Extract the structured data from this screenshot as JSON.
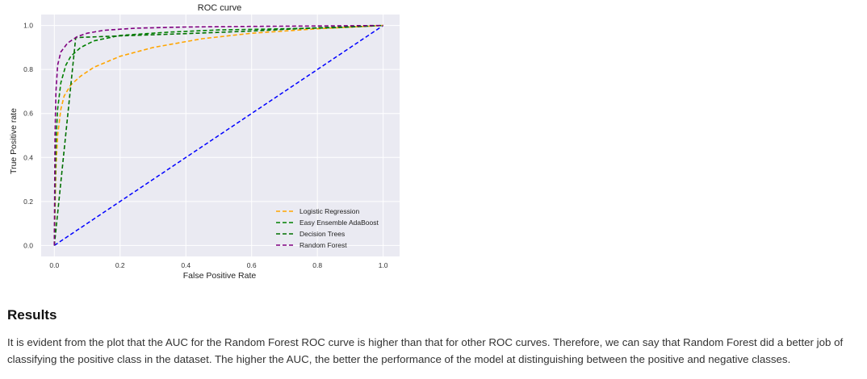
{
  "chart_data": {
    "type": "line",
    "title": "ROC curve",
    "xlabel": "False Positive Rate",
    "ylabel": "True Positive rate",
    "xlim": [
      -0.04,
      1.05
    ],
    "ylim": [
      -0.05,
      1.05
    ],
    "xticks": [
      "0.0",
      "0.2",
      "0.4",
      "0.6",
      "0.8",
      "1.0"
    ],
    "yticks": [
      "0.0",
      "0.2",
      "0.4",
      "0.6",
      "0.8",
      "1.0"
    ],
    "grid": true,
    "legend_position": "lower-right",
    "reference_line": {
      "x": [
        0,
        1
      ],
      "y": [
        0,
        1
      ],
      "color": "#0000ff"
    },
    "series": [
      {
        "name": "Logistic Regression",
        "color": "#ffa500",
        "x": [
          0,
          0.005,
          0.01,
          0.02,
          0.03,
          0.05,
          0.08,
          0.12,
          0.2,
          0.3,
          0.45,
          0.6,
          0.8,
          1.0
        ],
        "y": [
          0,
          0.35,
          0.5,
          0.62,
          0.68,
          0.73,
          0.77,
          0.81,
          0.86,
          0.9,
          0.94,
          0.965,
          0.985,
          1.0
        ]
      },
      {
        "name": "Easy Ensemble AdaBoost",
        "color": "#008000",
        "x": [
          0,
          0.003,
          0.006,
          0.01,
          0.02,
          0.035,
          0.05,
          0.08,
          0.12,
          0.2,
          0.35,
          0.5,
          0.7,
          0.85,
          1.0
        ],
        "y": [
          0,
          0.3,
          0.5,
          0.62,
          0.74,
          0.82,
          0.86,
          0.9,
          0.93,
          0.955,
          0.97,
          0.98,
          0.985,
          0.99,
          1.0
        ]
      },
      {
        "name": "Decision Trees",
        "color": "#007000",
        "x": [
          0,
          0.065,
          0.065,
          0.2,
          0.4,
          0.6,
          0.8,
          1.0
        ],
        "y": [
          0,
          0.945,
          0.945,
          0.953,
          0.963,
          0.975,
          0.99,
          1.0
        ]
      },
      {
        "name": "Random Forest",
        "color": "#800080",
        "x": [
          0,
          0.002,
          0.005,
          0.01,
          0.02,
          0.04,
          0.07,
          0.1,
          0.15,
          0.25,
          0.4,
          0.6,
          0.8,
          1.0
        ],
        "y": [
          0,
          0.5,
          0.7,
          0.82,
          0.88,
          0.92,
          0.95,
          0.965,
          0.978,
          0.988,
          0.993,
          0.996,
          0.998,
          1.0
        ]
      }
    ]
  },
  "results": {
    "heading": "Results",
    "text": "It is evident from the plot that the AUC for the Random Forest ROC curve is higher than that for other ROC curves. Therefore, we can say that Random Forest did a better job of classifying the positive class in the dataset. The higher the AUC, the better the performance of the model at distinguishing between the positive and negative classes."
  }
}
